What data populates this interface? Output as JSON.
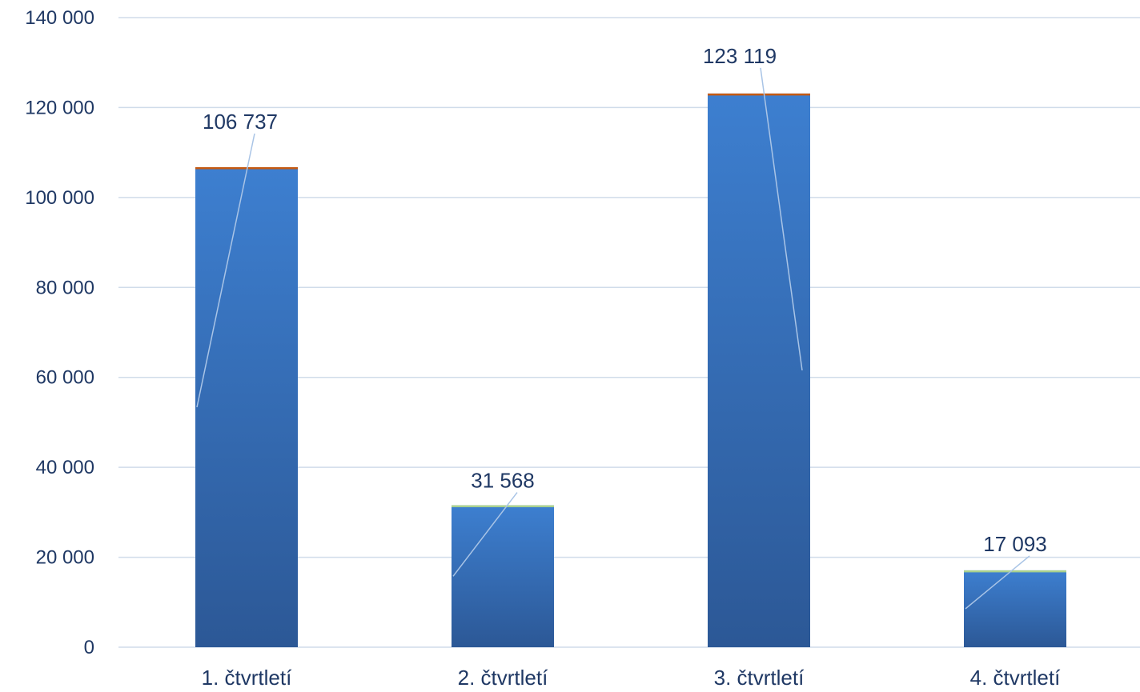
{
  "chart_data": {
    "type": "bar",
    "categories": [
      "1. čtvrtletí",
      "2. čtvrtletí",
      "3. čtvrtletí",
      "4. čtvrtletí"
    ],
    "values": [
      106737,
      31568,
      123119,
      17093
    ],
    "value_labels": [
      "106 737",
      "31 568",
      "123 119",
      "17 093"
    ],
    "title": "",
    "xlabel": "",
    "ylabel": "",
    "ylim": [
      0,
      140000
    ],
    "yticks": [
      0,
      20000,
      40000,
      60000,
      80000,
      100000,
      120000,
      140000
    ],
    "ytick_labels": [
      "0",
      "20 000",
      "40 000",
      "60 000",
      "80 000",
      "100 000",
      "120 000",
      "140 000"
    ],
    "grid": true,
    "legend": "none",
    "colors": {
      "bar_top": "#3d7fd0",
      "bar_bottom": "#2c5896",
      "bar_cap": [
        "#c55a11",
        "#a9d18e",
        "#c55a11",
        "#a9d18e"
      ],
      "grid": "#d0dcea",
      "text": "#1f3864",
      "leader": "#a9c4e6"
    }
  }
}
